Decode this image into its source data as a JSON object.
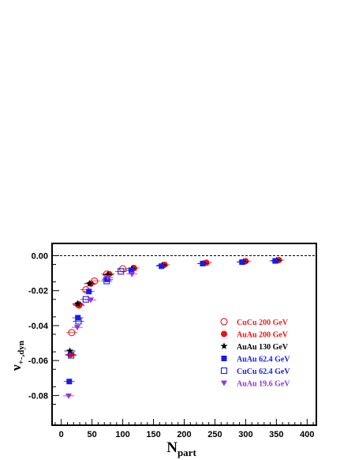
{
  "chart_data": {
    "type": "scatter",
    "xlabel": "N",
    "xlabel_sub": "part",
    "ylabel": "ν",
    "ylabel_sub": "+-,dyn",
    "xlim": [
      -15,
      415
    ],
    "ylim": [
      -0.097,
      0.007
    ],
    "x_ticks": [
      "0",
      "50",
      "100",
      "150",
      "200",
      "250",
      "300",
      "350",
      "400"
    ],
    "x_tick_values": [
      0,
      50,
      100,
      150,
      200,
      250,
      300,
      350,
      400
    ],
    "y_ticks": [
      "0.00",
      "-0.02",
      "-0.04",
      "-0.06",
      "-0.08"
    ],
    "y_tick_values": [
      0,
      -0.02,
      -0.04,
      -0.06,
      -0.08
    ],
    "reference_line": 0,
    "legend_position": "right, middle",
    "series": [
      {
        "name": "CuCu 200 GeV",
        "marker": "open-circle",
        "color": "#ee2222",
        "points": [
          [
            17,
            -0.044
          ],
          [
            28,
            -0.028
          ],
          [
            40,
            -0.0195
          ],
          [
            54,
            -0.0145
          ],
          [
            74,
            -0.0105
          ],
          [
            100,
            -0.0075
          ]
        ]
      },
      {
        "name": "AuAu 200 GeV",
        "marker": "filled-circle",
        "color": "#ee1111",
        "points": [
          [
            15,
            -0.0565
          ],
          [
            29,
            -0.0285
          ],
          [
            48,
            -0.016
          ],
          [
            78,
            -0.0105
          ],
          [
            118,
            -0.007
          ],
          [
            168,
            -0.0052
          ],
          [
            236,
            -0.004
          ],
          [
            300,
            -0.0032
          ],
          [
            354,
            -0.0025
          ]
        ]
      },
      {
        "name": "AuAu 130 GeV",
        "marker": "star",
        "color": "#000000",
        "points": [
          [
            14,
            -0.0545
          ],
          [
            27,
            -0.0275
          ],
          [
            46,
            -0.016
          ],
          [
            76,
            -0.011
          ],
          [
            115,
            -0.0075
          ],
          [
            164,
            -0.0055
          ],
          [
            231,
            -0.0045
          ],
          [
            296,
            -0.0035
          ],
          [
            350,
            -0.0028
          ]
        ]
      },
      {
        "name": "AuAu 62.4 GeV",
        "marker": "filled-square",
        "color": "#1a1aee",
        "points": [
          [
            13,
            -0.072
          ],
          [
            27,
            -0.0355
          ],
          [
            45,
            -0.0205
          ],
          [
            75,
            -0.0135
          ],
          [
            114,
            -0.0085
          ],
          [
            163,
            -0.006
          ],
          [
            230,
            -0.0045
          ],
          [
            294,
            -0.0037
          ],
          [
            348,
            -0.003
          ]
        ]
      },
      {
        "name": "CuCu 62.4 GeV",
        "marker": "open-square",
        "color": "#1a1aee",
        "points": [
          [
            16,
            -0.057
          ],
          [
            28,
            -0.0375
          ],
          [
            40,
            -0.025
          ],
          [
            74,
            -0.0145
          ],
          [
            97,
            -0.009
          ]
        ]
      },
      {
        "name": "AuAu 19.6 GeV",
        "marker": "filled-triangle-down",
        "color": "#9932dd",
        "points": [
          [
            12,
            -0.0802
          ],
          [
            26,
            -0.041
          ],
          [
            48,
            -0.0253
          ],
          [
            76,
            -0.0125
          ],
          [
            115,
            -0.0105
          ]
        ]
      }
    ],
    "title": ""
  }
}
